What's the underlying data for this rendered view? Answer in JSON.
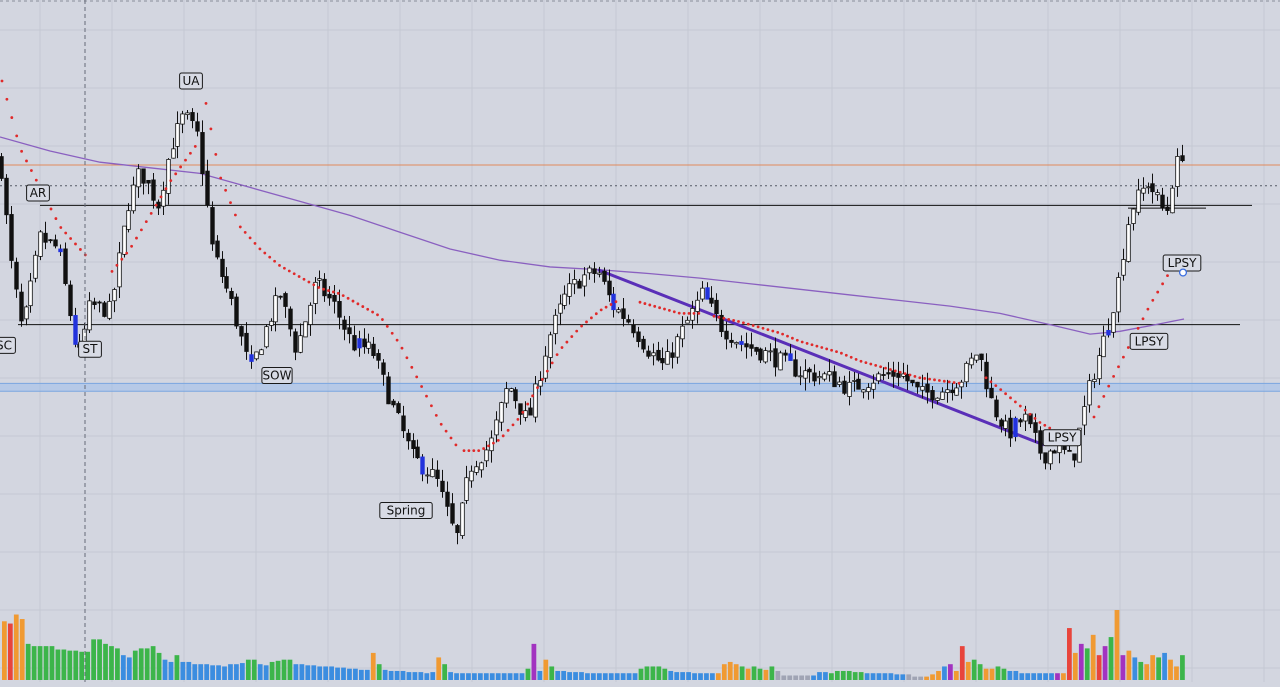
{
  "chart_data": {
    "type": "candlestick",
    "title": "",
    "xlabel": "",
    "ylabel": "",
    "x_range": [
      0,
      1280
    ],
    "y_range": [
      0,
      100
    ],
    "grid": true,
    "legend": "none",
    "colors": {
      "background": "#d3d6e0",
      "grid": "#c4c8d3",
      "candle_bull": "#ffffff",
      "candle_bear": "#111111",
      "candle_highlight": "#2233dd",
      "moving_average": "#8a60c0",
      "parabolic_sar": "#e02a2a",
      "trendline": "#5a2fb8",
      "resistance": "#e08a5c",
      "support_band": "#9ec0ec",
      "volume_green": "#3cb54a",
      "volume_blue": "#3b8de0",
      "volume_orange": "#f09a32",
      "volume_red": "#e8453c",
      "volume_purple": "#a233c0",
      "volume_gray": "#a0a4b4"
    },
    "price_anchors": [
      {
        "x": 0,
        "y": 76
      },
      {
        "x": 10,
        "y": 58
      },
      {
        "x": 22,
        "y": 45
      },
      {
        "x": 40,
        "y": 62
      },
      {
        "x": 58,
        "y": 60
      },
      {
        "x": 78,
        "y": 40
      },
      {
        "x": 90,
        "y": 50
      },
      {
        "x": 110,
        "y": 49
      },
      {
        "x": 128,
        "y": 68
      },
      {
        "x": 140,
        "y": 74
      },
      {
        "x": 158,
        "y": 68
      },
      {
        "x": 170,
        "y": 78
      },
      {
        "x": 184,
        "y": 84
      },
      {
        "x": 198,
        "y": 80
      },
      {
        "x": 212,
        "y": 60
      },
      {
        "x": 232,
        "y": 50
      },
      {
        "x": 250,
        "y": 38
      },
      {
        "x": 268,
        "y": 47
      },
      {
        "x": 280,
        "y": 52
      },
      {
        "x": 296,
        "y": 42
      },
      {
        "x": 316,
        "y": 54
      },
      {
        "x": 334,
        "y": 50
      },
      {
        "x": 352,
        "y": 43
      },
      {
        "x": 372,
        "y": 42
      },
      {
        "x": 392,
        "y": 32
      },
      {
        "x": 412,
        "y": 23
      },
      {
        "x": 436,
        "y": 19
      },
      {
        "x": 456,
        "y": 8
      },
      {
        "x": 470,
        "y": 21
      },
      {
        "x": 490,
        "y": 25
      },
      {
        "x": 508,
        "y": 36
      },
      {
        "x": 528,
        "y": 29
      },
      {
        "x": 548,
        "y": 44
      },
      {
        "x": 566,
        "y": 52
      },
      {
        "x": 582,
        "y": 55
      },
      {
        "x": 598,
        "y": 56
      },
      {
        "x": 612,
        "y": 50
      },
      {
        "x": 630,
        "y": 47
      },
      {
        "x": 648,
        "y": 42
      },
      {
        "x": 664,
        "y": 39
      },
      {
        "x": 684,
        "y": 46
      },
      {
        "x": 702,
        "y": 52
      },
      {
        "x": 722,
        "y": 46
      },
      {
        "x": 742,
        "y": 43
      },
      {
        "x": 770,
        "y": 41
      },
      {
        "x": 800,
        "y": 38
      },
      {
        "x": 830,
        "y": 37
      },
      {
        "x": 850,
        "y": 35
      },
      {
        "x": 875,
        "y": 37
      },
      {
        "x": 900,
        "y": 38
      },
      {
        "x": 920,
        "y": 34
      },
      {
        "x": 945,
        "y": 35
      },
      {
        "x": 962,
        "y": 37
      },
      {
        "x": 978,
        "y": 42
      },
      {
        "x": 992,
        "y": 32
      },
      {
        "x": 1008,
        "y": 27
      },
      {
        "x": 1024,
        "y": 30
      },
      {
        "x": 1042,
        "y": 23
      },
      {
        "x": 1058,
        "y": 25
      },
      {
        "x": 1072,
        "y": 22
      },
      {
        "x": 1090,
        "y": 36
      },
      {
        "x": 1104,
        "y": 44
      },
      {
        "x": 1116,
        "y": 52
      },
      {
        "x": 1130,
        "y": 67
      },
      {
        "x": 1148,
        "y": 72
      },
      {
        "x": 1166,
        "y": 66
      },
      {
        "x": 1174,
        "y": 74
      },
      {
        "x": 1184,
        "y": 78
      }
    ],
    "highlighted_candles_x": [
      58,
      74,
      250,
      358,
      422,
      612,
      706,
      740,
      790,
      1014,
      1108
    ],
    "moving_average": [
      {
        "x": 0,
        "y": 80
      },
      {
        "x": 50,
        "y": 77.5
      },
      {
        "x": 100,
        "y": 75.5
      },
      {
        "x": 150,
        "y": 74.5
      },
      {
        "x": 200,
        "y": 73.5
      },
      {
        "x": 250,
        "y": 71
      },
      {
        "x": 300,
        "y": 68.5
      },
      {
        "x": 350,
        "y": 66
      },
      {
        "x": 400,
        "y": 63
      },
      {
        "x": 450,
        "y": 60
      },
      {
        "x": 500,
        "y": 58
      },
      {
        "x": 550,
        "y": 56.8
      },
      {
        "x": 600,
        "y": 56.3
      },
      {
        "x": 650,
        "y": 55.6
      },
      {
        "x": 700,
        "y": 54.8
      },
      {
        "x": 750,
        "y": 53.8
      },
      {
        "x": 800,
        "y": 52.8
      },
      {
        "x": 850,
        "y": 51.8
      },
      {
        "x": 900,
        "y": 50.8
      },
      {
        "x": 950,
        "y": 49.8
      },
      {
        "x": 1000,
        "y": 48.5
      },
      {
        "x": 1050,
        "y": 46.5
      },
      {
        "x": 1090,
        "y": 44.8
      },
      {
        "x": 1120,
        "y": 45.3
      },
      {
        "x": 1150,
        "y": 46.3
      },
      {
        "x": 1184,
        "y": 47.5
      }
    ],
    "sar_segments": [
      {
        "points": [
          {
            "x": 2,
            "y": 90
          },
          {
            "x": 20,
            "y": 78
          },
          {
            "x": 40,
            "y": 71
          },
          {
            "x": 60,
            "y": 64
          },
          {
            "x": 80,
            "y": 60
          },
          {
            "x": 90,
            "y": 58
          }
        ]
      },
      {
        "points": [
          {
            "x": 112,
            "y": 56
          },
          {
            "x": 130,
            "y": 60
          },
          {
            "x": 150,
            "y": 66
          },
          {
            "x": 170,
            "y": 72
          },
          {
            "x": 190,
            "y": 77
          },
          {
            "x": 198,
            "y": 79
          }
        ]
      },
      {
        "points": [
          {
            "x": 206,
            "y": 86
          },
          {
            "x": 220,
            "y": 73
          },
          {
            "x": 240,
            "y": 64
          },
          {
            "x": 260,
            "y": 60
          },
          {
            "x": 280,
            "y": 57
          },
          {
            "x": 300,
            "y": 55
          },
          {
            "x": 320,
            "y": 53
          },
          {
            "x": 340,
            "y": 52
          },
          {
            "x": 360,
            "y": 50
          },
          {
            "x": 380,
            "y": 48
          },
          {
            "x": 400,
            "y": 43
          },
          {
            "x": 420,
            "y": 36
          },
          {
            "x": 440,
            "y": 29
          },
          {
            "x": 456,
            "y": 25
          }
        ]
      },
      {
        "points": [
          {
            "x": 464,
            "y": 24
          },
          {
            "x": 480,
            "y": 24
          },
          {
            "x": 500,
            "y": 26
          },
          {
            "x": 520,
            "y": 30
          },
          {
            "x": 540,
            "y": 36
          },
          {
            "x": 560,
            "y": 42
          },
          {
            "x": 580,
            "y": 46
          },
          {
            "x": 600,
            "y": 49
          },
          {
            "x": 620,
            "y": 51
          }
        ]
      },
      {
        "points": [
          {
            "x": 640,
            "y": 50.5
          },
          {
            "x": 660,
            "y": 49.5
          },
          {
            "x": 680,
            "y": 48.5
          },
          {
            "x": 700,
            "y": 48.5
          }
        ]
      },
      {
        "points": [
          {
            "x": 714,
            "y": 48
          },
          {
            "x": 740,
            "y": 47
          },
          {
            "x": 760,
            "y": 46
          },
          {
            "x": 780,
            "y": 45
          },
          {
            "x": 800,
            "y": 43.5
          },
          {
            "x": 820,
            "y": 42.5
          },
          {
            "x": 840,
            "y": 41.5
          },
          {
            "x": 860,
            "y": 40
          },
          {
            "x": 880,
            "y": 39
          },
          {
            "x": 900,
            "y": 38
          },
          {
            "x": 920,
            "y": 37
          },
          {
            "x": 940,
            "y": 36.5
          },
          {
            "x": 960,
            "y": 36
          }
        ]
      },
      {
        "points": [
          {
            "x": 986,
            "y": 37
          },
          {
            "x": 1000,
            "y": 35
          },
          {
            "x": 1020,
            "y": 32
          },
          {
            "x": 1040,
            "y": 29
          },
          {
            "x": 1060,
            "y": 27
          },
          {
            "x": 1080,
            "y": 27
          }
        ]
      },
      {
        "points": [
          {
            "x": 1094,
            "y": 30
          },
          {
            "x": 1110,
            "y": 36
          },
          {
            "x": 1130,
            "y": 43
          },
          {
            "x": 1150,
            "y": 50
          },
          {
            "x": 1170,
            "y": 56
          },
          {
            "x": 1184,
            "y": 59
          }
        ]
      }
    ],
    "horizontal_levels": [
      {
        "kind": "resistance",
        "y": 75,
        "x_start": 0,
        "x_end": 1280
      },
      {
        "kind": "dotted",
        "y": 71.3,
        "x_start": 0,
        "x_end": 1280
      },
      {
        "kind": "range-top",
        "y": 67.8,
        "x_start": 40,
        "x_end": 1252
      },
      {
        "kind": "range-bottom",
        "y": 46.5,
        "x_start": 18,
        "x_end": 1240
      },
      {
        "kind": "short",
        "y": 67.3,
        "x_start": 1128,
        "x_end": 1206
      }
    ],
    "support_band": {
      "y_top": 36,
      "y_bottom": 34.6
    },
    "trendline": {
      "x1": 598,
      "y1": 56.3,
      "x2": 1044,
      "y2": 25
    },
    "crosshair_x": 85,
    "annotations": [
      {
        "label": "SC",
        "x": 4,
        "y": 42.8
      },
      {
        "label": "AR",
        "x": 38,
        "y": 70
      },
      {
        "label": "ST",
        "x": 90,
        "y": 42.1
      },
      {
        "label": "UA",
        "x": 191,
        "y": 90
      },
      {
        "label": "SOW",
        "x": 277,
        "y": 37.4
      },
      {
        "label": "Spring",
        "x": 406,
        "y": 13.3
      },
      {
        "label": "LPSY",
        "x": 1062,
        "y": 26.3
      },
      {
        "label": "LPSY",
        "x": 1149,
        "y": 43.5
      },
      {
        "label": "LPSY",
        "x": 1182,
        "y": 57.5
      }
    ],
    "volume": {
      "colors": [
        "orange",
        "red",
        "orange",
        "orange",
        "green",
        "green",
        "green",
        "green",
        "green",
        "green",
        "green",
        "green",
        "green",
        "green",
        "green",
        "green",
        "green",
        "green",
        "green",
        "green",
        "blue",
        "blue",
        "green",
        "green",
        "green",
        "green",
        "green",
        "blue",
        "blue",
        "green",
        "blue",
        "blue",
        "blue",
        "blue",
        "blue",
        "blue",
        "blue",
        "blue",
        "blue",
        "blue",
        "blue",
        "green",
        "green",
        "blue",
        "blue",
        "green",
        "green",
        "green",
        "green",
        "blue",
        "blue",
        "blue",
        "blue",
        "blue",
        "blue",
        "blue",
        "blue",
        "blue",
        "blue",
        "blue",
        "blue",
        "blue",
        "orange",
        "green",
        "blue",
        "blue",
        "blue",
        "blue",
        "blue",
        "blue",
        "blue",
        "blue",
        "blue",
        "orange",
        "green",
        "blue",
        "blue",
        "blue",
        "blue",
        "blue",
        "blue",
        "blue",
        "blue",
        "blue",
        "blue",
        "blue",
        "blue",
        "blue",
        "green",
        "purple",
        "blue",
        "orange",
        "green",
        "blue",
        "blue",
        "blue",
        "blue",
        "blue",
        "blue",
        "blue",
        "blue",
        "blue",
        "blue",
        "blue",
        "blue",
        "blue",
        "blue",
        "green",
        "green",
        "green",
        "green",
        "green",
        "blue",
        "blue",
        "blue",
        "blue",
        "blue",
        "blue",
        "blue",
        "blue",
        "orange",
        "orange",
        "orange",
        "orange",
        "green",
        "orange",
        "green",
        "green",
        "orange",
        "green",
        "gray",
        "gray",
        "gray",
        "gray",
        "gray",
        "gray",
        "blue",
        "blue",
        "blue",
        "green",
        "green",
        "green",
        "green",
        "green",
        "green",
        "blue",
        "blue",
        "blue",
        "blue",
        "blue",
        "blue",
        "blue",
        "gray",
        "gray",
        "gray",
        "orange",
        "orange",
        "orange",
        "blue",
        "purple",
        "orange",
        "red",
        "orange",
        "green",
        "green",
        "orange",
        "orange",
        "green",
        "green",
        "blue",
        "blue",
        "blue",
        "blue",
        "blue",
        "blue",
        "blue",
        "blue",
        "purple",
        "orange",
        "red",
        "orange",
        "purple",
        "green",
        "orange",
        "red",
        "purple",
        "green",
        "orange",
        "purple",
        "orange",
        "blue",
        "green",
        "orange",
        "orange",
        "green",
        "blue",
        "orange",
        "orange",
        "green"
      ],
      "values": [
        52,
        50,
        58,
        54,
        32,
        30,
        30,
        30,
        30,
        27,
        27,
        26,
        26,
        25,
        25,
        36,
        36,
        32,
        30,
        28,
        22,
        20,
        26,
        28,
        28,
        30,
        24,
        18,
        16,
        22,
        16,
        16,
        14,
        14,
        14,
        13,
        13,
        12,
        14,
        14,
        15,
        18,
        18,
        14,
        13,
        16,
        17,
        18,
        18,
        14,
        14,
        13,
        13,
        12,
        12,
        12,
        11,
        11,
        10,
        10,
        9,
        9,
        24,
        14,
        9,
        8,
        8,
        8,
        7,
        7,
        7,
        6,
        7,
        20,
        14,
        7,
        6,
        6,
        6,
        6,
        6,
        6,
        6,
        6,
        6,
        6,
        6,
        6,
        10,
        32,
        8,
        18,
        12,
        8,
        8,
        7,
        7,
        7,
        6,
        6,
        6,
        6,
        6,
        6,
        6,
        6,
        6,
        10,
        12,
        12,
        12,
        10,
        8,
        7,
        7,
        7,
        6,
        6,
        6,
        6,
        6,
        14,
        16,
        14,
        12,
        10,
        12,
        10,
        9,
        12,
        8,
        4,
        4,
        4,
        4,
        4,
        4,
        7,
        7,
        6,
        8,
        8,
        8,
        7,
        7,
        6,
        6,
        6,
        6,
        6,
        5,
        5,
        5,
        3,
        3,
        3,
        5,
        8,
        12,
        14,
        8,
        30,
        16,
        18,
        14,
        10,
        10,
        12,
        10,
        8,
        8,
        6,
        6,
        6,
        6,
        6,
        6,
        6,
        6,
        46,
        24,
        32,
        28,
        40,
        22,
        30,
        38,
        62,
        22,
        26,
        20,
        16,
        14,
        22,
        20,
        24,
        18,
        12,
        22,
        30,
        22
      ]
    }
  }
}
